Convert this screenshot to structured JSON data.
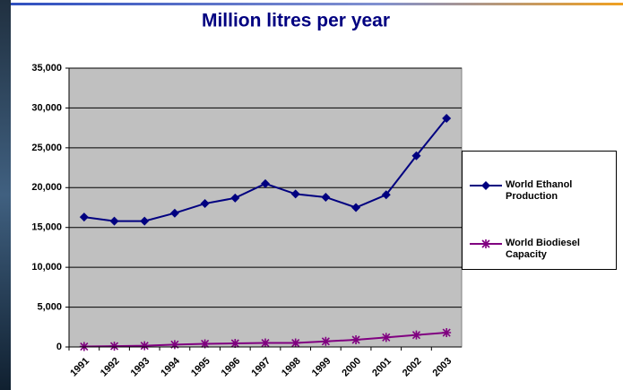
{
  "chart_data": {
    "type": "line",
    "title": "Million litres per year",
    "categories": [
      "1991",
      "1992",
      "1993",
      "1994",
      "1995",
      "1996",
      "1997",
      "1998",
      "1999",
      "2000",
      "2001",
      "2002",
      "2003"
    ],
    "series": [
      {
        "name": "World Ethanol Production",
        "color": "#000080",
        "marker": "diamond",
        "values": [
          16300,
          15800,
          15800,
          16800,
          18000,
          18700,
          20500,
          19200,
          18800,
          17500,
          19100,
          24000,
          28700
        ]
      },
      {
        "name": "World Biodiesel Capacity",
        "color": "#800080",
        "marker": "asterisk",
        "values": [
          50,
          100,
          150,
          300,
          400,
          450,
          500,
          500,
          700,
          900,
          1200,
          1500,
          1800
        ]
      }
    ],
    "ylim": [
      0,
      35000
    ],
    "yticks": [
      0,
      {
        "value": 5000,
        "label": "5,000"
      },
      {
        "value": 10000,
        "label": "10,000"
      },
      {
        "value": 15000,
        "label": "15,000"
      },
      {
        "value": 20000,
        "label": "20,000"
      },
      {
        "value": 25000,
        "label": "25,000"
      },
      {
        "value": 30000,
        "label": "30,000"
      },
      {
        "value": 35000,
        "label": "35,000"
      }
    ],
    "grid": true,
    "plot_background": "#c0c0c0",
    "legend": "right"
  }
}
